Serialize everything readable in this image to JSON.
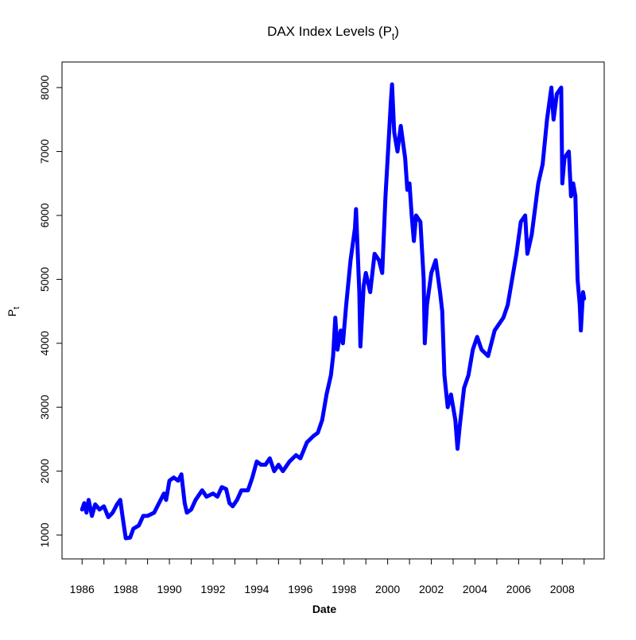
{
  "chart_data": {
    "type": "line",
    "title": {
      "text": "DAX Index Levels (P",
      "subscript": "t",
      "close": ")"
    },
    "x_label": "Date",
    "y_label": {
      "text": "P",
      "subscript": "t"
    },
    "xlim": [
      1985.08,
      2009.92
    ],
    "ylim": [
      627,
      8400
    ],
    "xticks": [
      1986,
      1988,
      1990,
      1992,
      1994,
      1996,
      1998,
      2000,
      2002,
      2004,
      2006,
      2008
    ],
    "xminor_ticks": [
      1987,
      1989,
      1991,
      1993,
      1995,
      1997,
      1999,
      2001,
      2003,
      2005,
      2007,
      2009
    ],
    "yticks": [
      1000,
      2000,
      3000,
      4000,
      5000,
      6000,
      7000,
      8000
    ],
    "series": [
      {
        "color": "#0000ff",
        "x": [
          1986.0,
          1986.1,
          1986.2,
          1986.3,
          1986.45,
          1986.6,
          1986.8,
          1987.0,
          1987.2,
          1987.4,
          1987.6,
          1987.75,
          1987.85,
          1988.0,
          1988.2,
          1988.35,
          1988.6,
          1988.8,
          1989.0,
          1989.3,
          1989.6,
          1989.75,
          1989.85,
          1990.0,
          1990.2,
          1990.4,
          1990.55,
          1990.7,
          1990.8,
          1991.0,
          1991.2,
          1991.5,
          1991.7,
          1992.0,
          1992.2,
          1992.4,
          1992.6,
          1992.75,
          1992.9,
          1993.1,
          1993.3,
          1993.6,
          1993.8,
          1994.0,
          1994.2,
          1994.4,
          1994.6,
          1994.8,
          1995.0,
          1995.2,
          1995.5,
          1995.8,
          1996.0,
          1996.3,
          1996.6,
          1996.8,
          1997.0,
          1997.2,
          1997.4,
          1997.5,
          1997.6,
          1997.7,
          1997.85,
          1997.95,
          1998.1,
          1998.3,
          1998.5,
          1998.55,
          1998.7,
          1998.75,
          1998.9,
          1999.0,
          1999.2,
          1999.4,
          1999.6,
          1999.75,
          1999.9,
          2000.0,
          2000.15,
          2000.2,
          2000.3,
          2000.45,
          2000.6,
          2000.8,
          2000.9,
          2001.0,
          2001.1,
          2001.2,
          2001.3,
          2001.5,
          2001.65,
          2001.7,
          2001.8,
          2002.0,
          2002.2,
          2002.4,
          2002.5,
          2002.6,
          2002.75,
          2002.9,
          2003.1,
          2003.2,
          2003.3,
          2003.5,
          2003.7,
          2003.9,
          2004.0,
          2004.1,
          2004.3,
          2004.6,
          2004.9,
          2005.0,
          2005.3,
          2005.5,
          2005.7,
          2005.9,
          2006.1,
          2006.3,
          2006.4,
          2006.6,
          2006.9,
          2007.1,
          2007.3,
          2007.5,
          2007.6,
          2007.75,
          2007.95,
          2008.0,
          2008.1,
          2008.3,
          2008.4,
          2008.5,
          2008.6,
          2008.7,
          2008.8,
          2008.85,
          2008.95,
          2009.0
        ],
        "values": [
          1400,
          1500,
          1350,
          1550,
          1300,
          1480,
          1400,
          1450,
          1280,
          1350,
          1480,
          1550,
          1300,
          950,
          960,
          1100,
          1150,
          1300,
          1300,
          1350,
          1550,
          1650,
          1550,
          1850,
          1900,
          1850,
          1950,
          1500,
          1350,
          1400,
          1550,
          1700,
          1600,
          1650,
          1600,
          1750,
          1720,
          1500,
          1450,
          1550,
          1700,
          1700,
          1900,
          2150,
          2100,
          2100,
          2200,
          2000,
          2100,
          2000,
          2150,
          2250,
          2200,
          2450,
          2550,
          2600,
          2800,
          3200,
          3500,
          3800,
          4400,
          3900,
          4200,
          4000,
          4600,
          5300,
          5800,
          6100,
          4800,
          3950,
          4900,
          5100,
          4800,
          5400,
          5300,
          5100,
          6300,
          6900,
          7800,
          8050,
          7300,
          7000,
          7400,
          6900,
          6400,
          6500,
          6000,
          5600,
          6000,
          5900,
          5000,
          4000,
          4600,
          5100,
          5300,
          4800,
          4500,
          3500,
          3000,
          3200,
          2800,
          2350,
          2700,
          3300,
          3500,
          3900,
          4000,
          4100,
          3900,
          3800,
          4200,
          4250,
          4400,
          4600,
          5000,
          5400,
          5900,
          6000,
          5400,
          5700,
          6500,
          6800,
          7500,
          8000,
          7500,
          7900,
          8000,
          6500,
          6900,
          7000,
          6300,
          6500,
          6300,
          5000,
          4600,
          4200,
          4800,
          4700
        ]
      }
    ]
  }
}
